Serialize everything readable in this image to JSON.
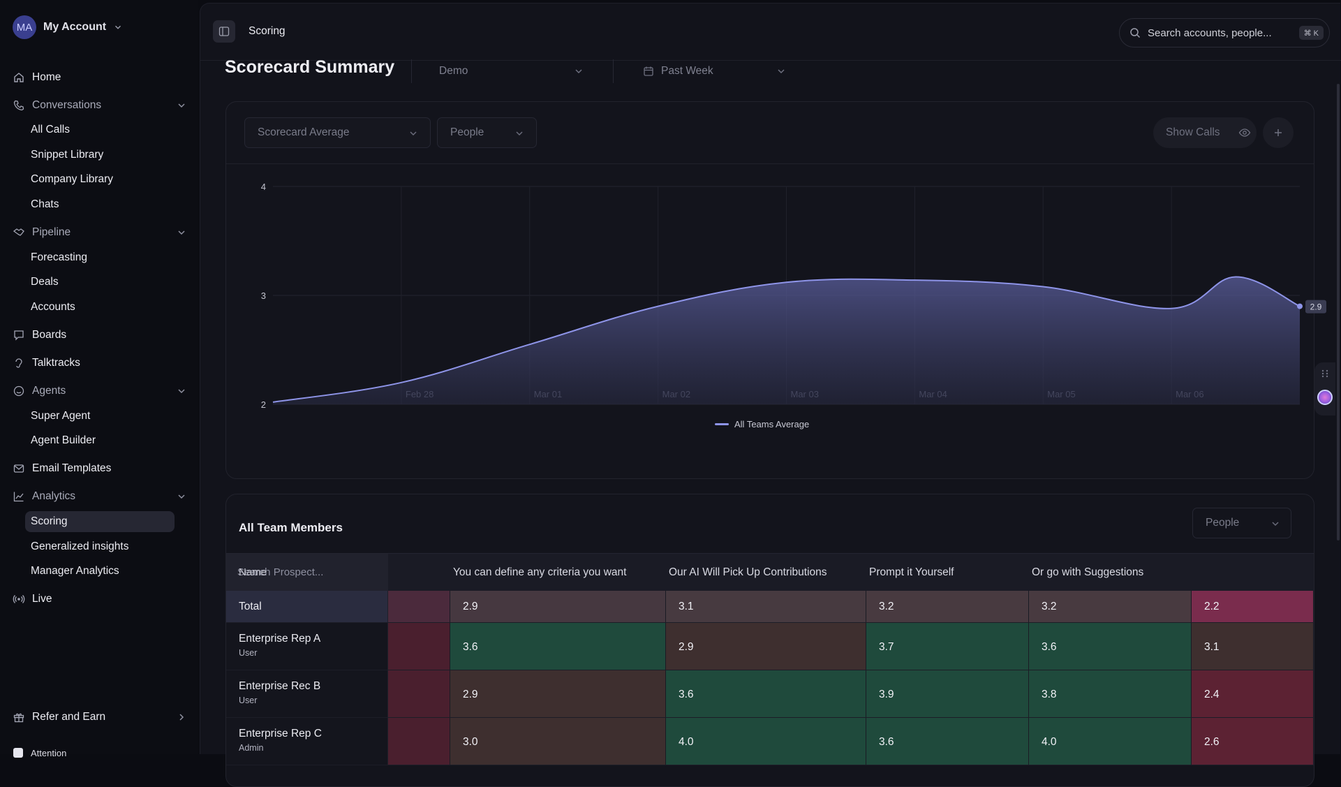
{
  "account": {
    "initials": "MA",
    "name": "My Account"
  },
  "sidebar": {
    "home": "Home",
    "conversations": {
      "label": "Conversations",
      "items": [
        "All Calls",
        "Snippet Library",
        "Company Library",
        "Chats"
      ]
    },
    "pipeline": {
      "label": "Pipeline",
      "items": [
        "Forecasting",
        "Deals",
        "Accounts"
      ]
    },
    "boards": "Boards",
    "talktracks": "Talktracks",
    "agents": {
      "label": "Agents",
      "items": [
        "Super Agent",
        "Agent Builder"
      ]
    },
    "email_templates": "Email Templates",
    "analytics": {
      "label": "Analytics",
      "items": [
        "Scoring",
        "Generalized insights",
        "Manager Analytics"
      ],
      "active": "Scoring"
    },
    "live": "Live",
    "refer": "Refer and Earn",
    "attention": "Attention"
  },
  "topbar": {
    "breadcrumb": "Scoring",
    "search_placeholder": "Search accounts, people...",
    "shortcut": "⌘ K"
  },
  "header": {
    "title": "Scorecard Summary",
    "workspace_select": "Demo",
    "date_select": "Past Week"
  },
  "chart_card": {
    "metric_select": "Scorecard Average",
    "group_select": "People",
    "show_calls_label": "Show Calls"
  },
  "chart_data": {
    "type": "area",
    "title": "",
    "xlabel": "",
    "ylabel": "",
    "x_ticks": [
      "Feb 28",
      "Mar 01",
      "Mar 02",
      "Mar 03",
      "Mar 04",
      "Mar 05",
      "Mar 06"
    ],
    "y_ticks": [
      2,
      3,
      4
    ],
    "ylim": [
      2,
      4
    ],
    "xlim": [
      "Feb 27",
      "Mar 07"
    ],
    "grid": true,
    "legend": "bottom",
    "series": [
      {
        "name": "All Teams Average",
        "color": "#8e94e8",
        "x": [
          "Feb 27",
          "Feb 28",
          "Mar 01",
          "Mar 02",
          "Mar 03",
          "Mar 04",
          "Mar 05",
          "Mar 06",
          "Mar 06 12:00",
          "Mar 07"
        ],
        "values": [
          2.02,
          2.2,
          2.55,
          2.9,
          3.12,
          3.14,
          3.08,
          2.88,
          3.17,
          2.9
        ]
      }
    ],
    "end_label": "2.9"
  },
  "team": {
    "title": "All Team Members",
    "group_select": "People",
    "name_column": "Name",
    "name_placeholder": "Search Prospect...",
    "columns": [
      "",
      "You can define any criteria you want",
      "Our AI Will Pick Up Contributions",
      "Prompt it Yourself",
      "Or go with Suggestions",
      ""
    ],
    "total_label": "Total",
    "total_values": [
      "",
      "2.9",
      "3.1",
      "3.2",
      "3.2",
      "2.2"
    ],
    "rows": [
      {
        "name": "Enterprise Rep A",
        "role": "User",
        "values": [
          "",
          "3.6",
          "2.9",
          "3.7",
          "3.6",
          "3.1"
        ]
      },
      {
        "name": "Enterprise Rec B",
        "role": "User",
        "values": [
          "",
          "2.9",
          "3.6",
          "3.9",
          "3.8",
          "2.4"
        ]
      },
      {
        "name": "Enterprise Rep C",
        "role": "Admin",
        "values": [
          "",
          "3.0",
          "4.0",
          "3.6",
          "4.0",
          "2.6"
        ]
      }
    ],
    "colors": {
      "total": [
        "#4b2a3c",
        "#463840",
        "#473a40",
        "#483a40",
        "#483a40",
        "#7a2c4d"
      ],
      "row_high": "#1f4a3c",
      "row_mid": "#3e2f2f",
      "row_low": "#5c2233",
      "first_col": "#4a1f2e"
    }
  }
}
